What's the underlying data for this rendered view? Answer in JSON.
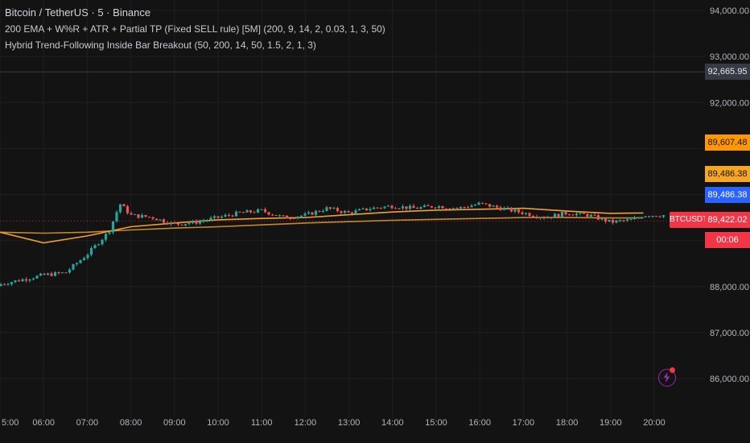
{
  "legend": {
    "symbol": "Bitcoin / TetherUS · 5 · Binance",
    "indicator1": "200 EMA + W%R + ATR + Partial TP (Fixed SELL rule) [5M] (200, 9, 14, 2, 0.03, 1, 3, 50)",
    "indicator2": "Hybrid Trend-Following Inside Bar Breakout (50, 200, 14, 50, 1.5, 2, 1, 3)"
  },
  "price_tags": {
    "upper_line": "92,665.95",
    "orange1": "89,607.48",
    "orange2": "89,486.38",
    "blue": "89,486.38",
    "last_price": "89,422.02",
    "countdown": "00:06",
    "ticker": "BTCUSDT"
  },
  "colors": {
    "up": "#26a69a",
    "down": "#ef5350",
    "ema_orange": "#f0a030",
    "ema_brown": "#c7882c",
    "tag_orange": "#ff9800",
    "tag_blue": "#2962ff",
    "tag_red": "#f23645"
  },
  "chart_data": {
    "type": "candlestick",
    "symbol": "BTCUSDT",
    "y_ticks": [
      "94,000.00",
      "93,000.00",
      "92,000.00",
      "88,000.00",
      "87,000.00",
      "86,000.00"
    ],
    "x_ticks": [
      "5:00",
      "06:00",
      "07:00",
      "08:00",
      "09:00",
      "10:00",
      "11:00",
      "12:00",
      "13:00",
      "14:00",
      "15:00",
      "16:00",
      "17:00",
      "18:00",
      "19:00",
      "20:00"
    ],
    "ylim": [
      85600,
      94200
    ],
    "close_trend": [
      [
        "05:00",
        88050
      ],
      [
        "05:30",
        88150
      ],
      [
        "06:00",
        88250
      ],
      [
        "06:30",
        88300
      ],
      [
        "07:00",
        88700
      ],
      [
        "07:30",
        89200
      ],
      [
        "07:45",
        89800
      ],
      [
        "08:00",
        89550
      ],
      [
        "08:30",
        89500
      ],
      [
        "09:00",
        89350
      ],
      [
        "09:30",
        89400
      ],
      [
        "10:00",
        89500
      ],
      [
        "10:30",
        89600
      ],
      [
        "11:00",
        89650
      ],
      [
        "11:30",
        89500
      ],
      [
        "12:00",
        89550
      ],
      [
        "12:30",
        89700
      ],
      [
        "13:00",
        89600
      ],
      [
        "13:30",
        89700
      ],
      [
        "14:00",
        89750
      ],
      [
        "14:30",
        89700
      ],
      [
        "15:00",
        89750
      ],
      [
        "15:30",
        89700
      ],
      [
        "16:00",
        89800
      ],
      [
        "16:30",
        89700
      ],
      [
        "17:00",
        89600
      ],
      [
        "17:30",
        89500
      ],
      [
        "18:00",
        89600
      ],
      [
        "18:30",
        89550
      ],
      [
        "19:00",
        89400
      ],
      [
        "19:30",
        89450
      ],
      [
        "19:45",
        89550
      ]
    ],
    "ema_50": [
      [
        "05:00",
        89180
      ],
      [
        "06:00",
        88950
      ],
      [
        "07:00",
        89100
      ],
      [
        "08:00",
        89300
      ],
      [
        "09:00",
        89380
      ],
      [
        "10:00",
        89450
      ],
      [
        "11:00",
        89480
      ],
      [
        "12:00",
        89500
      ],
      [
        "13:00",
        89560
      ],
      [
        "14:00",
        89620
      ],
      [
        "15:00",
        89660
      ],
      [
        "16:00",
        89680
      ],
      [
        "17:00",
        89700
      ],
      [
        "18:00",
        89640
      ],
      [
        "19:00",
        89590
      ],
      [
        "19:45",
        89600
      ]
    ],
    "ema_200": [
      [
        "05:00",
        89180
      ],
      [
        "06:00",
        89160
      ],
      [
        "07:00",
        89180
      ],
      [
        "08:00",
        89230
      ],
      [
        "09:00",
        89270
      ],
      [
        "10:00",
        89300
      ],
      [
        "11:00",
        89340
      ],
      [
        "12:00",
        89380
      ],
      [
        "13:00",
        89410
      ],
      [
        "14:00",
        89440
      ],
      [
        "15:00",
        89460
      ],
      [
        "16:00",
        89480
      ],
      [
        "17:00",
        89500
      ],
      [
        "18:00",
        89500
      ],
      [
        "19:00",
        89490
      ],
      [
        "19:45",
        89490
      ]
    ]
  }
}
